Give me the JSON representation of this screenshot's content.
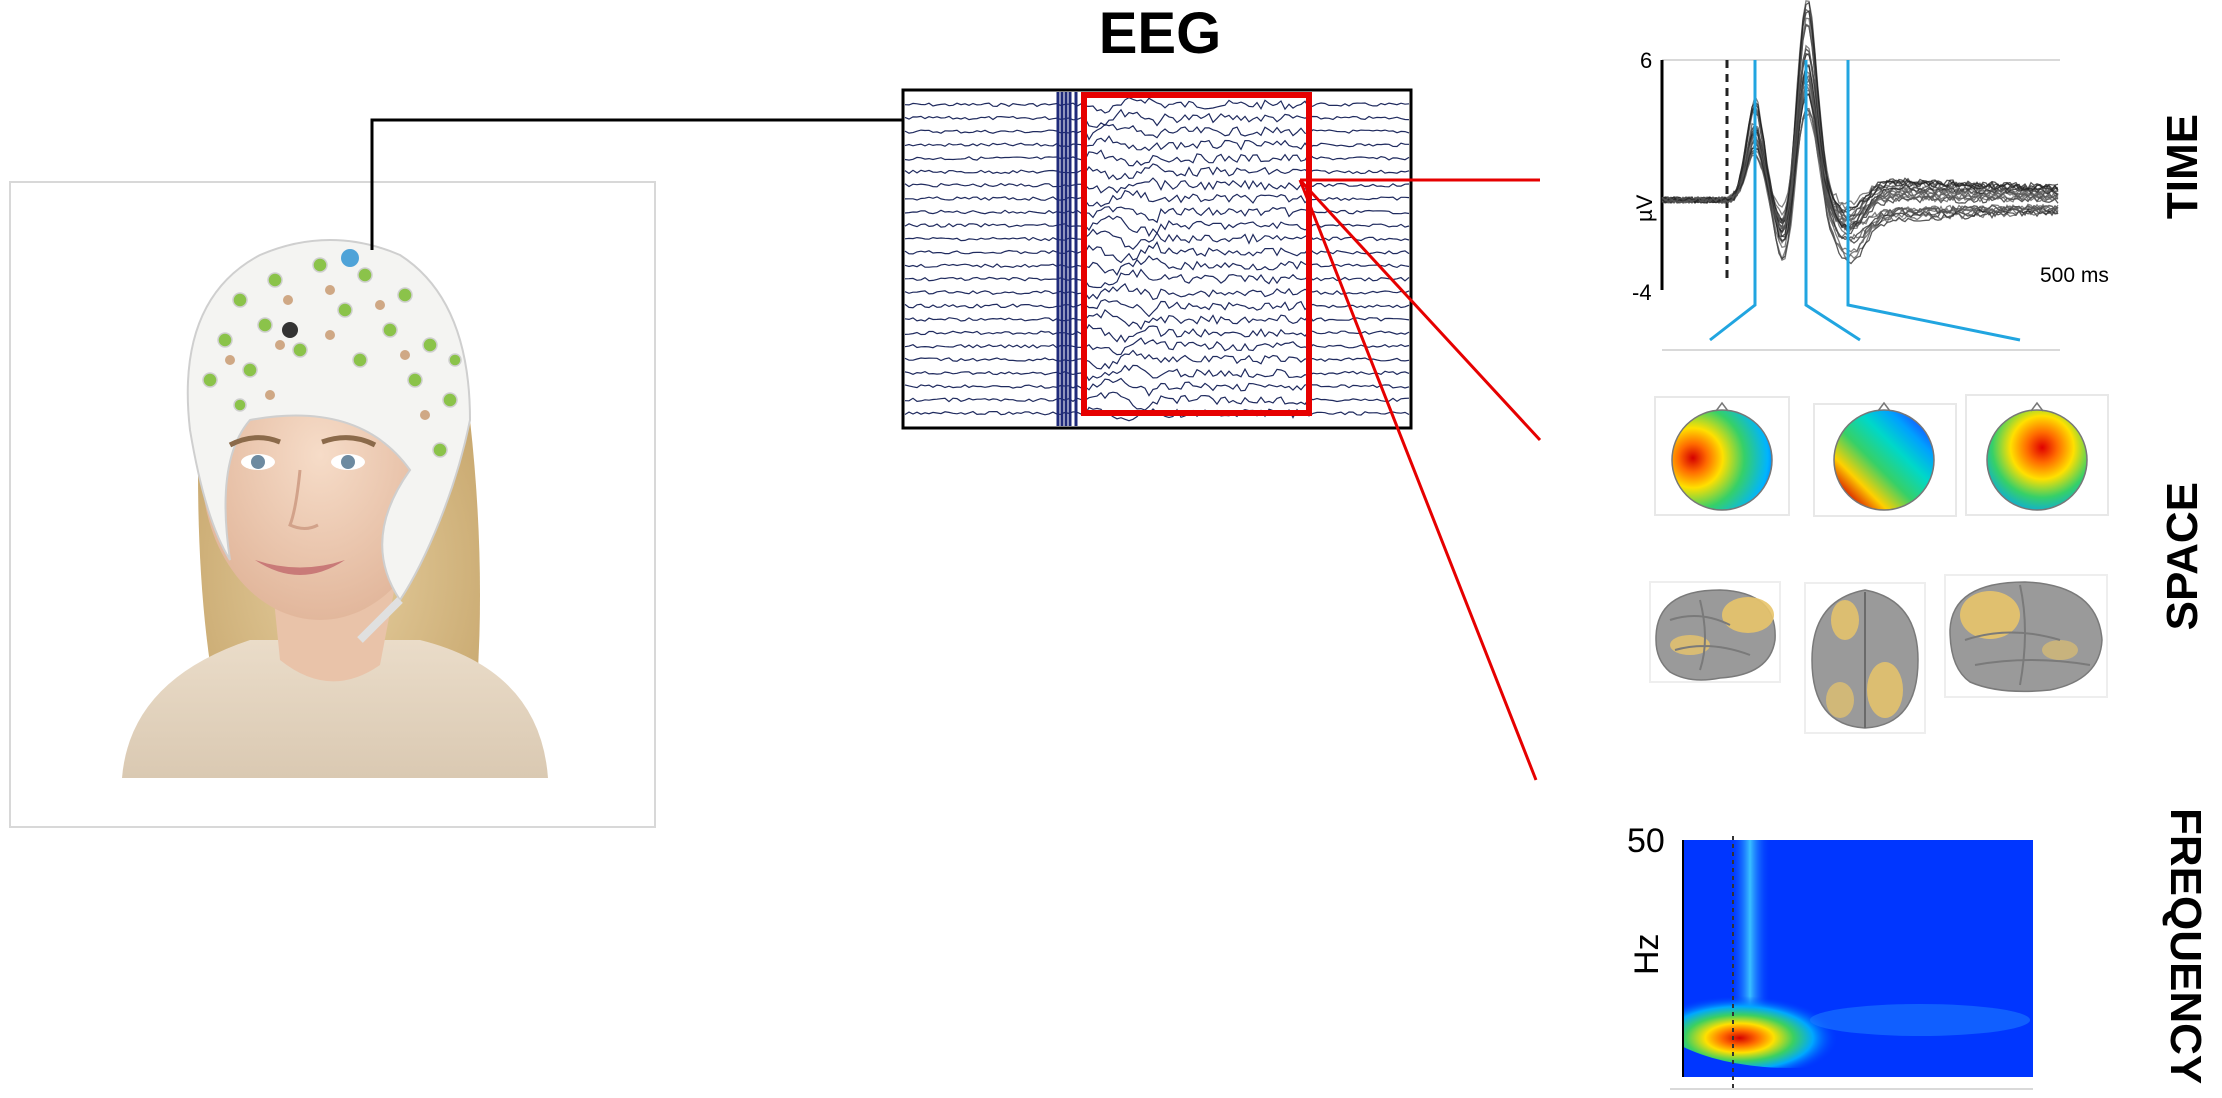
{
  "title": "EEG",
  "panels": {
    "time": {
      "label": "TIME",
      "y_max": "6",
      "y_min": "-4",
      "y_unit": "µV",
      "x_scale": "500 ms"
    },
    "space": {
      "label": "SPACE"
    },
    "frequency": {
      "label": "FREQUENCY",
      "y_max": "50",
      "y_unit": "Hz"
    }
  },
  "colors": {
    "highlight": "#e60000",
    "eeg_trace": "#1f2a5e",
    "erp_marker": "#21a5e0",
    "erp_trace": "#555555"
  },
  "icons": [
    "eeg-cap-photo",
    "topomap-icon",
    "brain-surface-icon",
    "time-frequency-map"
  ]
}
